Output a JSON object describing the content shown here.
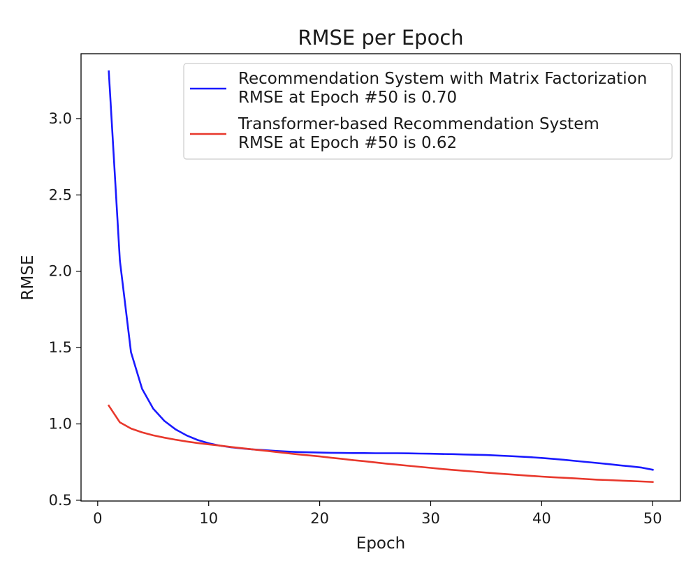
{
  "chart_data": {
    "type": "line",
    "title": "RMSE per Epoch",
    "xlabel": "Epoch",
    "ylabel": "RMSE",
    "xlim": [
      -1.5,
      52.5
    ],
    "ylim": [
      0.495,
      3.425
    ],
    "xticks": [
      0,
      10,
      20,
      30,
      40,
      50
    ],
    "yticks": [
      0.5,
      1.0,
      1.5,
      2.0,
      2.5,
      3.0
    ],
    "xtick_labels": [
      "0",
      "10",
      "20",
      "30",
      "40",
      "50"
    ],
    "ytick_labels": [
      "0.5",
      "1.0",
      "1.5",
      "2.0",
      "2.5",
      "3.0"
    ],
    "grid": false,
    "legend_position": "top-right",
    "x": [
      1,
      2,
      3,
      4,
      5,
      6,
      7,
      8,
      9,
      10,
      11,
      12,
      13,
      14,
      15,
      16,
      17,
      18,
      19,
      20,
      21,
      22,
      23,
      24,
      25,
      26,
      27,
      28,
      29,
      30,
      31,
      32,
      33,
      34,
      35,
      36,
      37,
      38,
      39,
      40,
      41,
      42,
      43,
      44,
      45,
      46,
      47,
      48,
      49,
      50
    ],
    "series": [
      {
        "name": "Recommendation System with Matrix Factorization\nRMSE at Epoch #50 is 0.70",
        "legend_lines": [
          "Recommendation System with Matrix Factorization",
          "RMSE at Epoch #50 is 0.70"
        ],
        "color": "#1a1aff",
        "values": [
          3.31,
          2.07,
          1.47,
          1.23,
          1.1,
          1.02,
          0.965,
          0.925,
          0.895,
          0.873,
          0.858,
          0.847,
          0.839,
          0.833,
          0.828,
          0.823,
          0.819,
          0.816,
          0.814,
          0.812,
          0.811,
          0.81,
          0.809,
          0.809,
          0.808,
          0.808,
          0.808,
          0.807,
          0.806,
          0.805,
          0.803,
          0.802,
          0.8,
          0.798,
          0.796,
          0.793,
          0.79,
          0.786,
          0.782,
          0.777,
          0.771,
          0.765,
          0.758,
          0.751,
          0.744,
          0.737,
          0.729,
          0.722,
          0.714,
          0.7
        ]
      },
      {
        "name": "Transformer-based Recommendation System\nRMSE at Epoch #50 is 0.62",
        "legend_lines": [
          "Transformer-based Recommendation System",
          "RMSE at Epoch #50 is 0.62"
        ],
        "color": "#e8382c",
        "values": [
          1.12,
          1.01,
          0.97,
          0.945,
          0.925,
          0.91,
          0.897,
          0.885,
          0.875,
          0.866,
          0.858,
          0.849,
          0.841,
          0.833,
          0.825,
          0.817,
          0.809,
          0.801,
          0.794,
          0.787,
          0.779,
          0.771,
          0.763,
          0.756,
          0.748,
          0.74,
          0.733,
          0.726,
          0.719,
          0.712,
          0.705,
          0.699,
          0.693,
          0.687,
          0.681,
          0.675,
          0.67,
          0.665,
          0.66,
          0.655,
          0.651,
          0.647,
          0.643,
          0.639,
          0.635,
          0.632,
          0.629,
          0.626,
          0.623,
          0.62
        ]
      }
    ]
  }
}
